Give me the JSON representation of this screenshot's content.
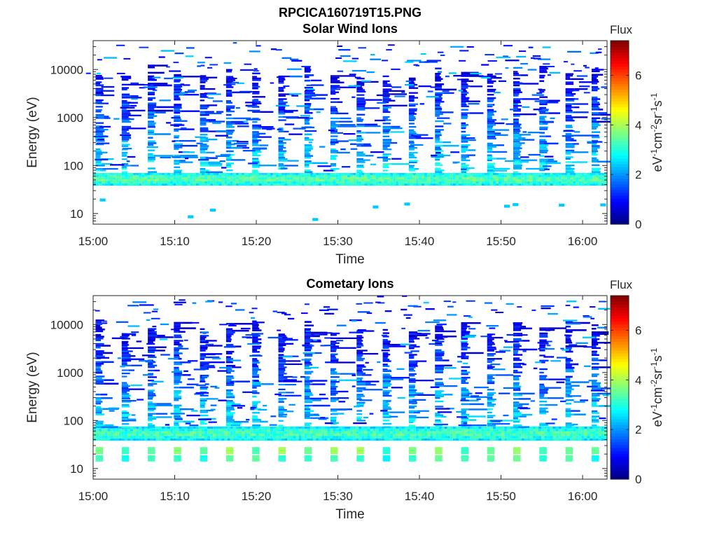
{
  "figure": {
    "title": "RPCICA160719T15.PNG"
  },
  "chart_data": [
    {
      "type": "heatmap",
      "title": "Solar Wind Ions",
      "xlabel": "Time",
      "ylabel": "Energy (eV)",
      "x_ticks": [
        "15:00",
        "15:10",
        "15:20",
        "15:30",
        "15:40",
        "15:50",
        "16:00"
      ],
      "x_range": [
        "15:00",
        "16:03"
      ],
      "y_scale": "log",
      "y_ticks": [
        10,
        100,
        1000,
        10000
      ],
      "y_range": [
        6,
        40000
      ],
      "colorbar": {
        "title": "Flux",
        "label": "eV-1cm-2sr-1s-1",
        "range": [
          0,
          7.4
        ],
        "ticks": [
          0,
          2,
          4,
          6
        ],
        "colormap": "jet"
      },
      "features": {
        "continuous_band_eV": [
          38,
          70
        ],
        "band_peak_flux": 3.5,
        "sweep_period_min": 3.2,
        "sweep_max_eV": 8000,
        "sporadic_low_energy_eV": [
          7,
          22
        ]
      }
    },
    {
      "type": "heatmap",
      "title": "Cometary Ions",
      "xlabel": "Time",
      "ylabel": "Energy (eV)",
      "x_ticks": [
        "15:00",
        "15:10",
        "15:20",
        "15:30",
        "15:40",
        "15:50",
        "16:00"
      ],
      "x_range": [
        "15:00",
        "16:03"
      ],
      "y_scale": "log",
      "y_ticks": [
        10,
        100,
        1000,
        10000
      ],
      "y_range": [
        6,
        40000
      ],
      "colorbar": {
        "title": "Flux",
        "label": "eV-1cm-2sr-1s-1",
        "range": [
          0,
          7.4
        ],
        "ticks": [
          0,
          2,
          4,
          6
        ],
        "colormap": "jet"
      },
      "features": {
        "continuous_band_eV": [
          38,
          75
        ],
        "band_peak_flux": 3.4,
        "sweep_period_min": 3.2,
        "sweep_max_eV": 8000,
        "periodic_low_energy_blocks_eV": [
          14,
          28
        ],
        "low_block_flux": 3.5
      }
    }
  ]
}
